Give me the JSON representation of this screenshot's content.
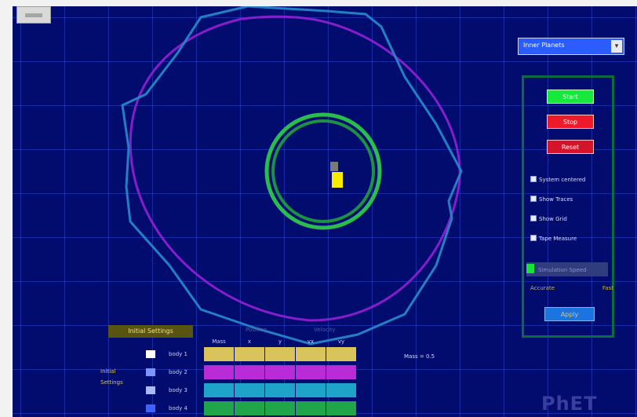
{
  "controls": {
    "scenario_select": "Inner Planets",
    "start_label": "Start",
    "stop_label": "Stop",
    "reset_label": "Reset",
    "options": [
      {
        "label": "System centered"
      },
      {
        "label": "Show Traces"
      },
      {
        "label": "Show Grid"
      },
      {
        "label": "Tape Measure"
      }
    ],
    "speed_label": "Simulation Speed",
    "speed_min": "Accurate",
    "speed_max": "Fast",
    "apply_label": "Apply"
  },
  "orbit_panel": {
    "title": "Initial Settings",
    "sub_label_1": "Position",
    "sub_label_2": "Velocity",
    "legend_title": [
      "Initial",
      "Settings"
    ],
    "column_headers": [
      "Mass",
      "x",
      "y",
      "vx",
      "vy"
    ],
    "rows": [
      {
        "label": "body 1",
        "color": "#d8c45a",
        "swatch": "#ffffff"
      },
      {
        "label": "body 2",
        "color": "#b92bd6",
        "swatch": "#7b95ff"
      },
      {
        "label": "body 3",
        "color": "#1ea4c8",
        "swatch": "#a7b9ff"
      },
      {
        "label": "body 4",
        "color": "#21a54a",
        "swatch": "#3c62ff"
      }
    ]
  },
  "readout": {
    "mass_text": "Mass = 0.5"
  },
  "logo": {
    "text": "PhET"
  },
  "colors": {
    "background": "#020c6e",
    "purple_orbit": "#8c1fd0",
    "blue_orbit": "#2586c9",
    "green_orbit": "#30d048",
    "sun": "#f7ec00"
  }
}
